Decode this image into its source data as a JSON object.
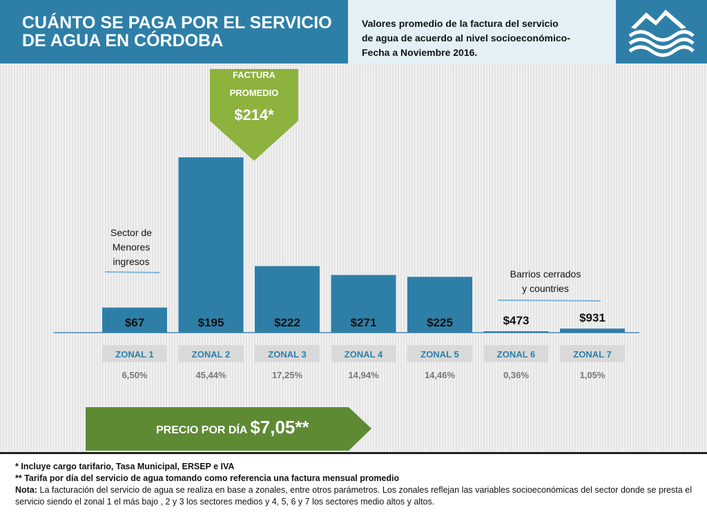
{
  "header": {
    "title_line1": "CUÁNTO SE PAGA POR EL SERVICIO",
    "title_line2": "DE AGUA EN CÓRDOBA",
    "subtitle_line1": "Valores promedio de la factura del servicio",
    "subtitle_line2": "de agua de acuerdo al nivel socioeconómico-",
    "subtitle_line3": "Fecha a Noviembre 2016."
  },
  "callout": {
    "label_line1": "FACTURA",
    "label_line2": "PROMEDIO",
    "value": "$214*"
  },
  "annotations": {
    "low_line1": "Sector de",
    "low_line2": "Menores",
    "low_line3": "ingresos",
    "high_line1": "Barrios cerrados",
    "high_line2": "y countries"
  },
  "price_banner": {
    "label": "PRECIO POR DÍA ",
    "value": "$7,05**"
  },
  "footer": {
    "line1": "* Incluye cargo tarifario, Tasa Municipal, ERSEP e IVA",
    "line2": "** Tarifa por día del servicio de agua tomando como referencia una factura mensual promedio",
    "note_label": "Nota:",
    "note_text": " La facturación del servicio de agua se realiza en base a zonales, entre otros parámetros.  Los zonales reflejan las variables socioeconómicas  del sector donde se presta el servicio siendo  el zonal 1 el más bajo , 2 y 3 los sectores medios y 4, 5, 6 y 7 los sectores medio altos y altos."
  },
  "colors": {
    "bar": "#2e7fa8",
    "header_blue": "#2e7fa8",
    "green": "#8db23d",
    "dark_green": "#5e8a34",
    "zone_label_bg": "#d9d9d9"
  },
  "chart_data": {
    "type": "bar",
    "categories": [
      "ZONAL 1",
      "ZONAL 2",
      "ZONAL 3",
      "ZONAL 4",
      "ZONAL 5",
      "ZONAL 6",
      "ZONAL 7"
    ],
    "values": [
      67,
      195,
      222,
      271,
      225,
      473,
      931
    ],
    "value_labels": [
      "$67",
      "$195",
      "$222",
      "$271",
      "$225",
      "$473",
      "$931"
    ],
    "shares": [
      "6,50%",
      "45,44%",
      "17,25%",
      "14,94%",
      "14,46%",
      "0,36%",
      "1,05%"
    ],
    "share_values": [
      6.5,
      45.44,
      17.25,
      14.94,
      14.46,
      0.36,
      1.05
    ],
    "grid": false
  }
}
